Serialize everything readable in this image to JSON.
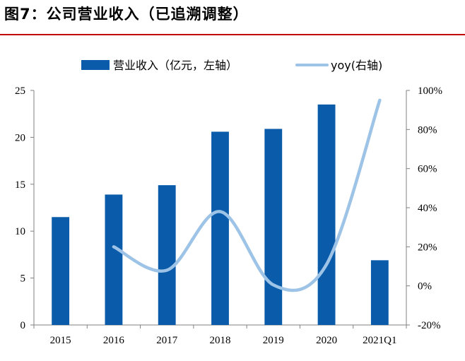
{
  "title": "图7：公司营业收入（已追溯调整）",
  "colors": {
    "bar": "#0b5bab",
    "line": "#9dc3e6",
    "rule": "#c00000",
    "axis": "#808080"
  },
  "chart_data": {
    "type": "bar",
    "categories": [
      "2015",
      "2016",
      "2017",
      "2018",
      "2019",
      "2020",
      "2021Q1"
    ],
    "series": [
      {
        "name": "营业收入（亿元，左轴）",
        "type": "bar",
        "axis": "left",
        "values": [
          11.5,
          13.9,
          14.9,
          20.6,
          20.9,
          23.5,
          6.9
        ]
      },
      {
        "name": "yoy(右轴)",
        "type": "line",
        "axis": "right",
        "smooth": true,
        "values": [
          null,
          20.0,
          8.0,
          38.0,
          0.5,
          11.0,
          95.0
        ]
      }
    ],
    "left_axis": {
      "ylim": [
        0,
        25
      ],
      "ticks": [
        "0",
        "5",
        "10",
        "15",
        "20",
        "25"
      ]
    },
    "right_axis": {
      "ylim": [
        -20,
        100
      ],
      "ticks": [
        "-20%",
        "0%",
        "20%",
        "40%",
        "60%",
        "80%",
        "100%"
      ]
    },
    "legend_position": "top",
    "grid": false
  }
}
